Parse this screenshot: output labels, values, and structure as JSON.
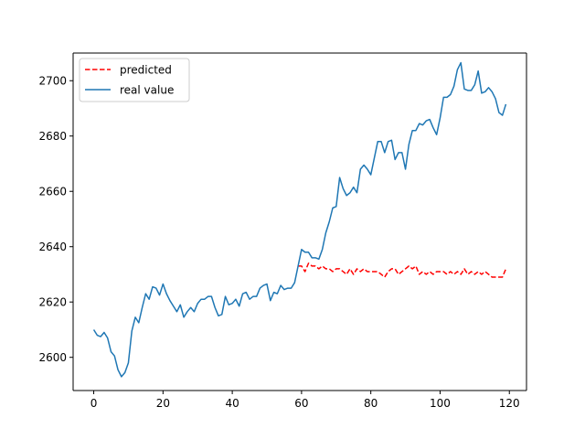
{
  "chart_data": {
    "type": "line",
    "title": "",
    "xlabel": "",
    "ylabel": "",
    "xlim": [
      -5.95,
      124.95
    ],
    "ylim": [
      2588,
      2710
    ],
    "x_ticks": [
      0,
      20,
      40,
      60,
      80,
      100,
      120
    ],
    "y_ticks": [
      2600,
      2620,
      2640,
      2660,
      2680,
      2700
    ],
    "grid": false,
    "legend_position": "top-left",
    "series": [
      {
        "name": "predicted",
        "color": "#ff0000",
        "style": "dashed",
        "x": [
          59,
          60,
          61,
          62,
          63,
          64,
          65,
          66,
          67,
          68,
          69,
          70,
          71,
          72,
          73,
          74,
          75,
          76,
          77,
          78,
          79,
          80,
          81,
          82,
          83,
          84,
          85,
          86,
          87,
          88,
          89,
          90,
          91,
          92,
          93,
          94,
          95,
          96,
          97,
          98,
          99,
          100,
          101,
          102,
          103,
          104,
          105,
          106,
          107,
          108,
          109,
          110,
          111,
          112,
          113,
          114,
          115,
          116,
          117,
          118,
          119
        ],
        "values": [
          2633,
          2633,
          2631,
          2634,
          2633,
          2633,
          2632,
          2633,
          2632,
          2632,
          2631,
          2632,
          2632,
          2631,
          2630,
          2632,
          2630,
          2632,
          2631,
          2632,
          2631,
          2631,
          2631,
          2631,
          2630,
          2629,
          2631,
          2632,
          2632,
          2630,
          2631,
          2632,
          2633,
          2632,
          2633,
          2630,
          2631,
          2630,
          2631,
          2630,
          2631,
          2631,
          2631,
          2630,
          2631,
          2630,
          2631,
          2630,
          2632,
          2630,
          2631,
          2630,
          2631,
          2630,
          2631,
          2630,
          2629,
          2629,
          2629,
          2629,
          2632
        ]
      },
      {
        "name": "real value",
        "color": "#1f77b4",
        "style": "solid",
        "x": [
          0,
          1,
          2,
          3,
          4,
          5,
          6,
          7,
          8,
          9,
          10,
          11,
          12,
          13,
          14,
          15,
          16,
          17,
          18,
          19,
          20,
          21,
          22,
          23,
          24,
          25,
          26,
          27,
          28,
          29,
          30,
          31,
          32,
          33,
          34,
          35,
          36,
          37,
          38,
          39,
          40,
          41,
          42,
          43,
          44,
          45,
          46,
          47,
          48,
          49,
          50,
          51,
          52,
          53,
          54,
          55,
          56,
          57,
          58,
          59,
          60,
          61,
          62,
          63,
          64,
          65,
          66,
          67,
          68,
          69,
          70,
          71,
          72,
          73,
          74,
          75,
          76,
          77,
          78,
          79,
          80,
          81,
          82,
          83,
          84,
          85,
          86,
          87,
          88,
          89,
          90,
          91,
          92,
          93,
          94,
          95,
          96,
          97,
          98,
          99,
          100,
          101,
          102,
          103,
          104,
          105,
          106,
          107,
          108,
          109,
          110,
          111,
          112,
          113,
          114,
          115,
          116,
          117,
          118,
          119
        ],
        "values": [
          2610,
          2608,
          2607.5,
          2609,
          2607,
          2602,
          2600.5,
          2595.5,
          2593,
          2594.5,
          2598,
          2609.5,
          2614.5,
          2612.5,
          2618,
          2623,
          2621,
          2625.5,
          2625,
          2622.5,
          2626.5,
          2623,
          2620.5,
          2618.5,
          2616.5,
          2619,
          2614.5,
          2616.5,
          2618,
          2616.5,
          2619.5,
          2621,
          2621,
          2622,
          2622,
          2618,
          2615,
          2615.5,
          2622,
          2619,
          2619.5,
          2621,
          2618.5,
          2623,
          2623.5,
          2621,
          2622,
          2622,
          2625,
          2626,
          2626.5,
          2620.5,
          2623.5,
          2623,
          2626,
          2624.5,
          2625,
          2625,
          2627,
          2633,
          2639,
          2638,
          2638,
          2636,
          2636,
          2635.5,
          2639,
          2645,
          2649,
          2654,
          2654.5,
          2665,
          2661,
          2658.5,
          2659.5,
          2661.5,
          2659.5,
          2668,
          2669.5,
          2668,
          2666,
          2672,
          2678,
          2678,
          2674,
          2678,
          2678.5,
          2671.5,
          2674,
          2674,
          2668,
          2677,
          2682,
          2682,
          2684.5,
          2684,
          2685.5,
          2686,
          2683,
          2680.5,
          2686.5,
          2694,
          2694,
          2695,
          2698,
          2704,
          2706.5,
          2697,
          2696.5,
          2696.5,
          2698.5,
          2703.5,
          2695.5,
          2696,
          2697.5,
          2696,
          2693.5,
          2688.5,
          2687.5,
          2691.5
        ]
      }
    ]
  }
}
